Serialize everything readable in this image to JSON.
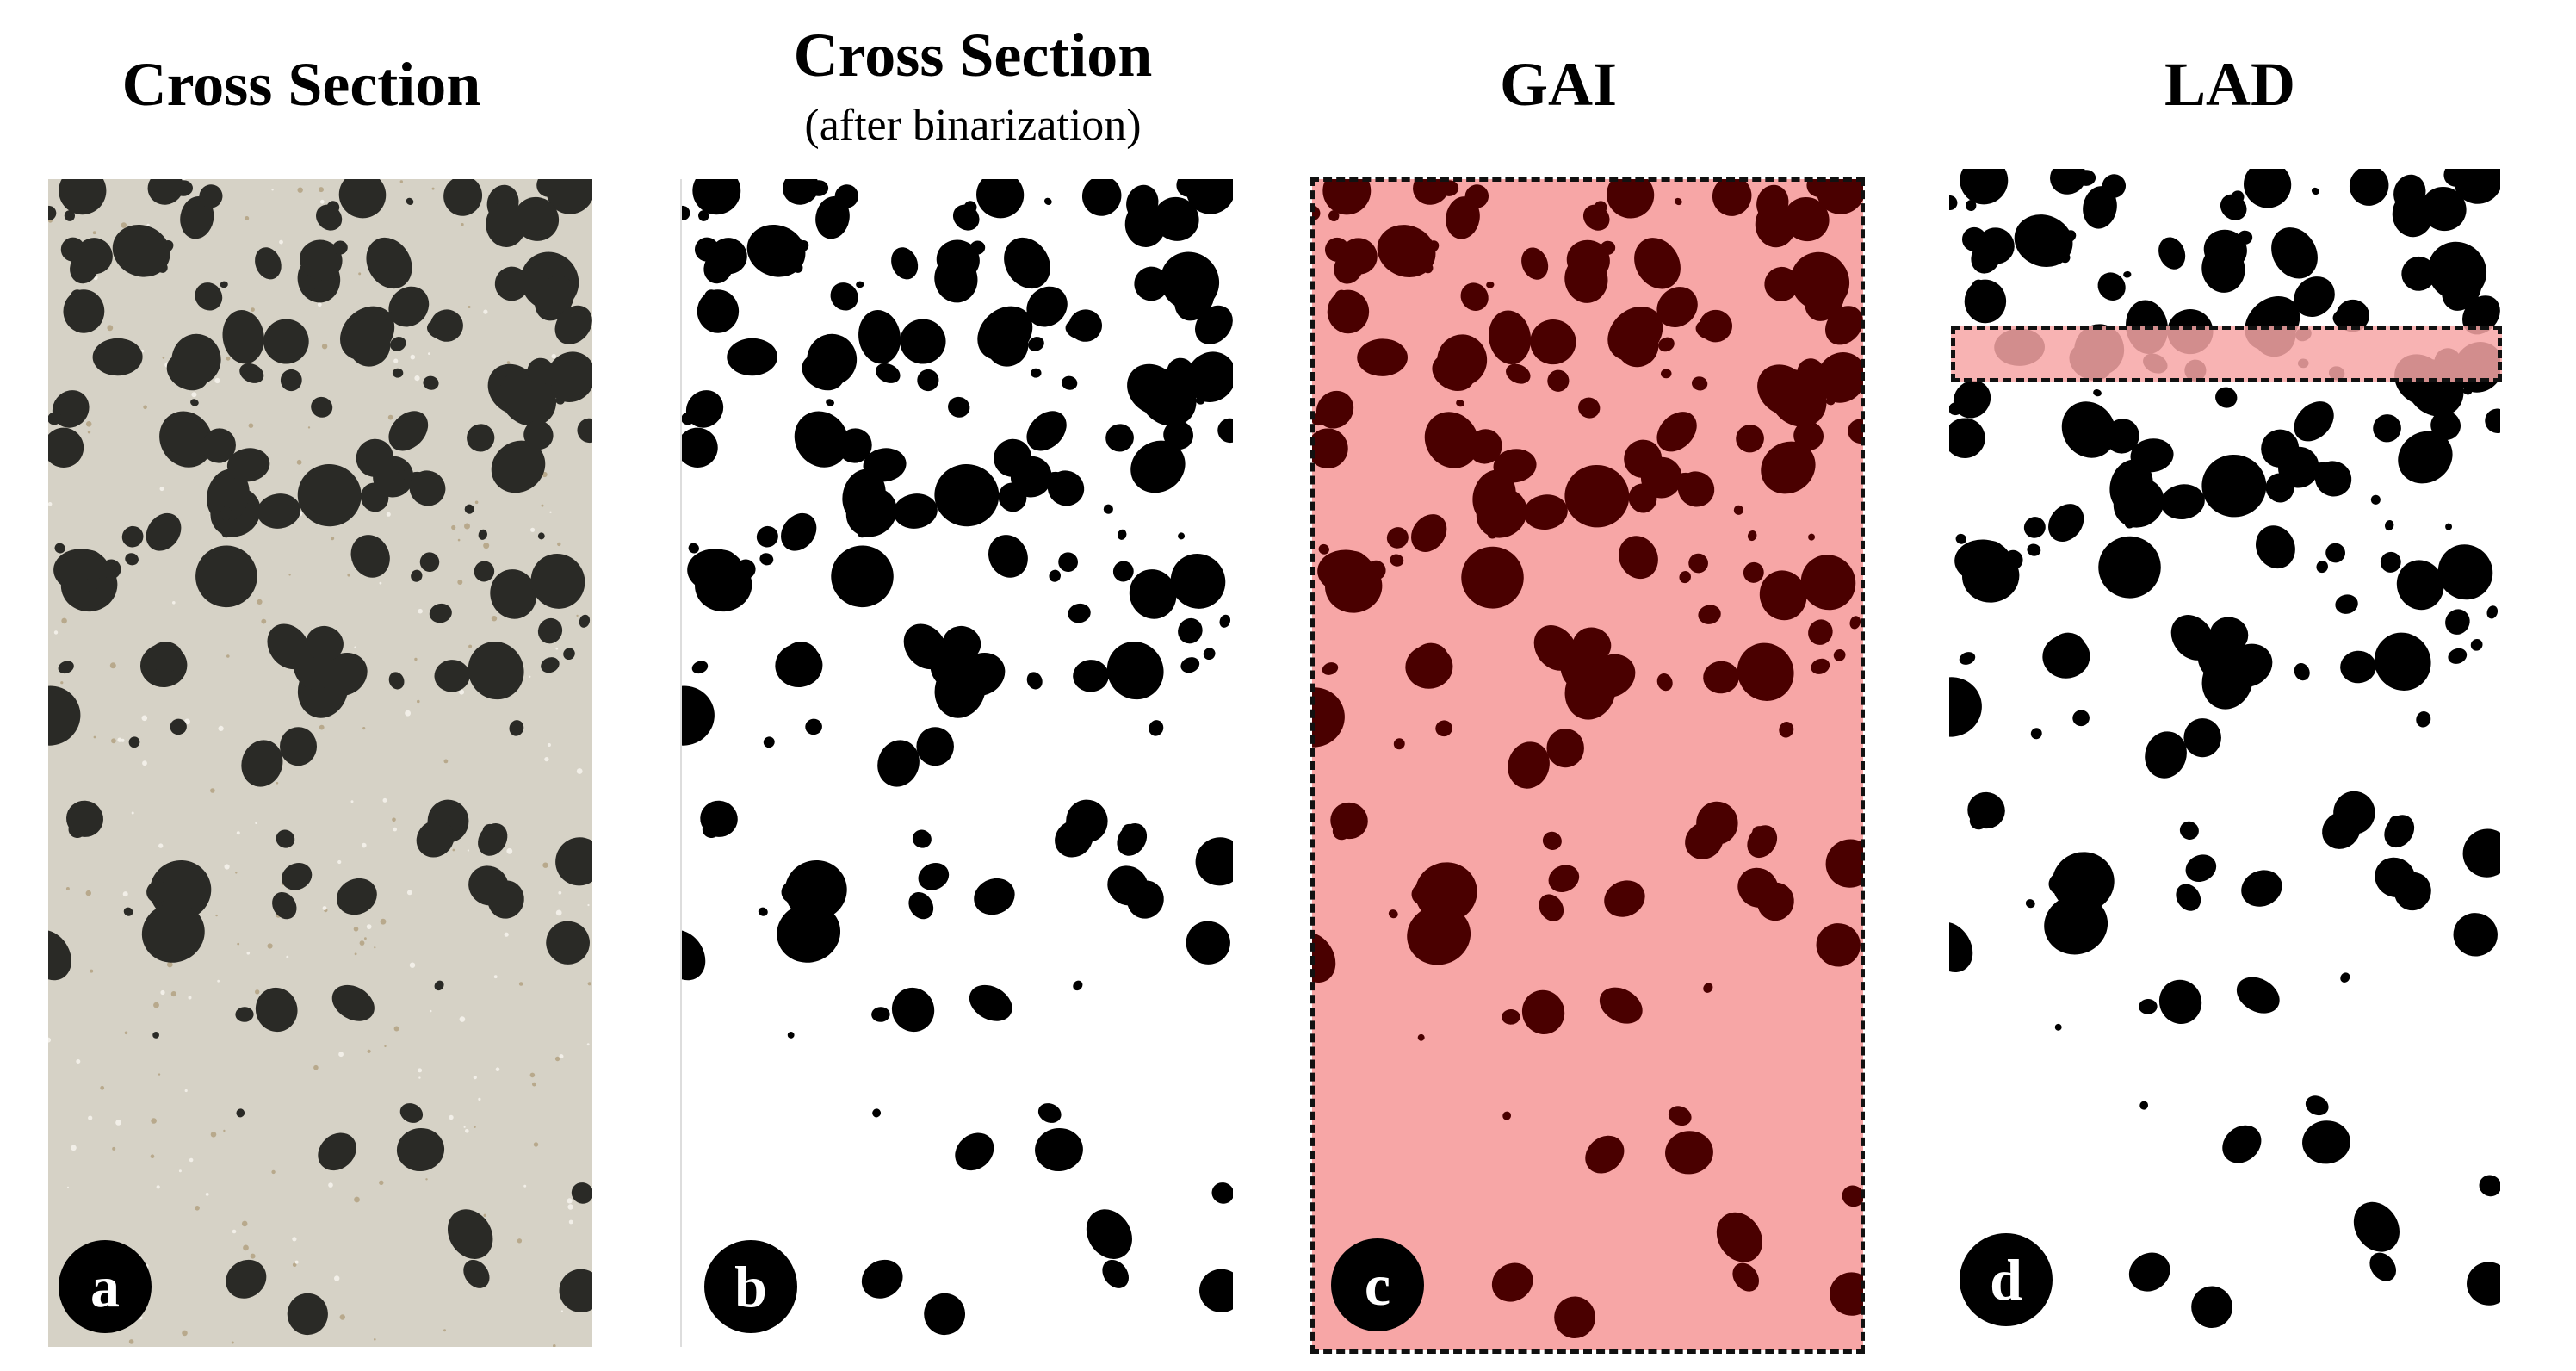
{
  "panels": [
    {
      "id": "a",
      "title": "Cross Section",
      "subtitle": "",
      "badge": "a"
    },
    {
      "id": "b",
      "title": "Cross Section",
      "subtitle": "(after binarization)",
      "badge": "b"
    },
    {
      "id": "c",
      "title": "GAI",
      "subtitle": "",
      "badge": "c"
    },
    {
      "id": "d",
      "title": "LAD",
      "subtitle": "",
      "badge": "d"
    }
  ],
  "colors": {
    "photo_background": "#d6d2c6",
    "particle_photo": "#2a2a26",
    "particle_binary": "#000000",
    "highlight": "#f7a6a6",
    "highlight_particle": "#4a0000"
  }
}
